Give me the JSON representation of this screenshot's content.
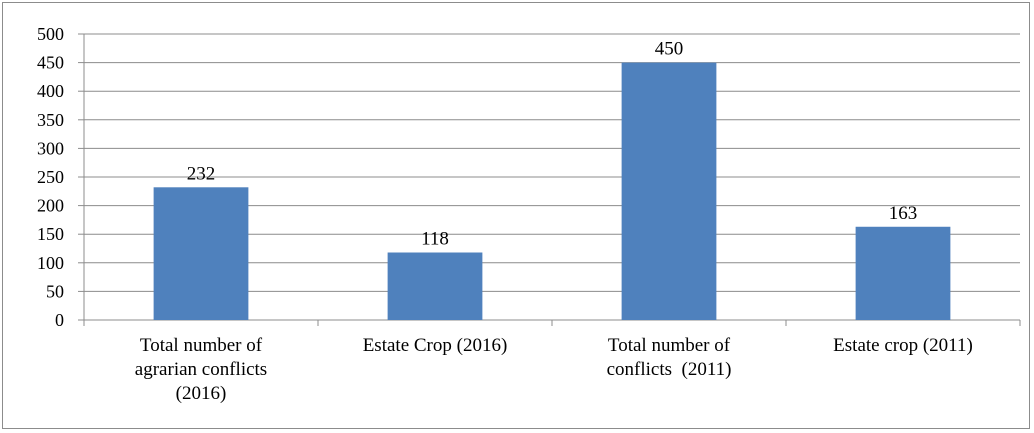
{
  "chart_data": {
    "type": "bar",
    "title": "",
    "xlabel": "",
    "ylabel": "",
    "ylim": [
      0,
      500
    ],
    "yticks": [
      0,
      50,
      100,
      150,
      200,
      250,
      300,
      350,
      400,
      450,
      500
    ],
    "grid": true,
    "legend": "none",
    "bar_color": "#4f81bd",
    "categories": [
      [
        "Total number of",
        "agrarian conflicts",
        "(2016)"
      ],
      [
        "Estate Crop (2016)"
      ],
      [
        "Total number of",
        "conflicts  (2011)"
      ],
      [
        "Estate crop (2011)"
      ]
    ],
    "values": [
      232,
      118,
      450,
      163
    ],
    "data_labels": [
      "232",
      "118",
      "450",
      "163"
    ]
  }
}
